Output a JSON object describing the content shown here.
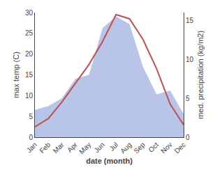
{
  "chart_data": {
    "type": "line",
    "categories": [
      "Jan",
      "Feb",
      "Mar",
      "Apr",
      "May",
      "Jun",
      "Jul",
      "Aug",
      "Sep",
      "Oct",
      "Nov",
      "Dec"
    ],
    "series": [
      {
        "type": "area",
        "color": "#b8c4e8",
        "axis": "y2",
        "values": [
          3.5,
          4.0,
          5.0,
          7.5,
          8.0,
          14.0,
          15.5,
          14.5,
          9.0,
          5.5,
          6.0,
          3.0
        ]
      },
      {
        "type": "line",
        "color": "#c0504d",
        "axis": "y",
        "values": [
          2.5,
          4.5,
          8.5,
          13.0,
          17.5,
          23.0,
          29.5,
          28.5,
          23.5,
          16.5,
          8.0,
          3.0
        ]
      }
    ],
    "xlabel": "date (month)",
    "ylabel": "max temp (C)",
    "y2label": "med. precipitation (kg/m2)",
    "ylim": [
      0,
      30
    ],
    "yticks": [
      0,
      5,
      10,
      15,
      20,
      25,
      30
    ],
    "y2lim": [
      0,
      16
    ],
    "y2ticks": [
      0,
      5,
      10,
      15
    ],
    "grid": false
  }
}
